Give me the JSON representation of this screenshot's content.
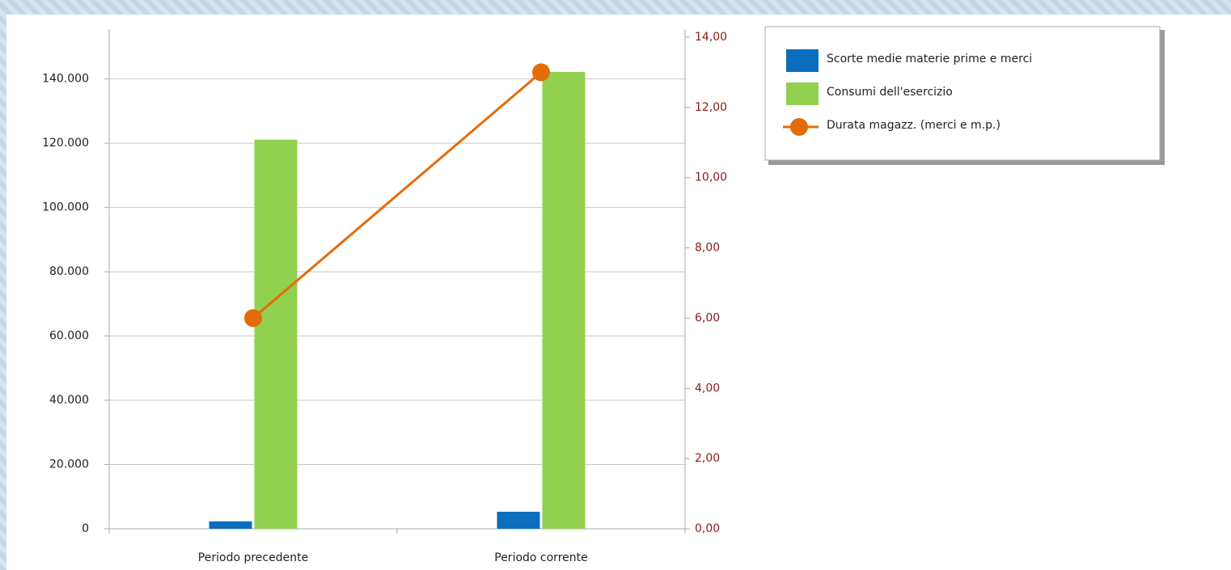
{
  "chart_data": {
    "type": "bar",
    "categories": [
      "Periodo precedente",
      "Periodo corrente"
    ],
    "series": [
      {
        "name": "Scorte medie materie prime e merci",
        "color": "#0a6ebd",
        "values": [
          2300,
          5300
        ]
      },
      {
        "name": "Consumi dell'esercizio",
        "color": "#92d050",
        "values": [
          121100,
          142200
        ]
      },
      {
        "name": "Durata magazz. (merci e m.p.)",
        "color": "#e36c09",
        "values": [
          6,
          13
        ],
        "axis": "y2",
        "type": "line"
      }
    ],
    "ylim": [
      0,
      153000
    ],
    "yticks": [
      0,
      {
        "value": 20000,
        "label": "20.000"
      },
      {
        "value": 40000,
        "label": "40.000"
      },
      {
        "value": 60000,
        "label": "60.000"
      },
      {
        "value": 80000,
        "label": "80.000"
      },
      {
        "value": 100000,
        "label": "100.000"
      },
      {
        "value": 120000,
        "label": "120.000"
      },
      {
        "value": 140000,
        "label": "140.000"
      }
    ],
    "y2lim": [
      0,
      14
    ],
    "y2ticks": [
      {
        "value": 0,
        "label": "0,00"
      },
      {
        "value": 2,
        "label": "2,00"
      },
      {
        "value": 4,
        "label": "4,00"
      },
      {
        "value": 6,
        "label": "6,00"
      },
      {
        "value": 8,
        "label": "8,00"
      },
      {
        "value": 10,
        "label": "10,00"
      },
      {
        "value": 12,
        "label": "12,00"
      },
      {
        "value": 14,
        "label": "14,00"
      }
    ],
    "grid": true,
    "legend": "top-right"
  }
}
